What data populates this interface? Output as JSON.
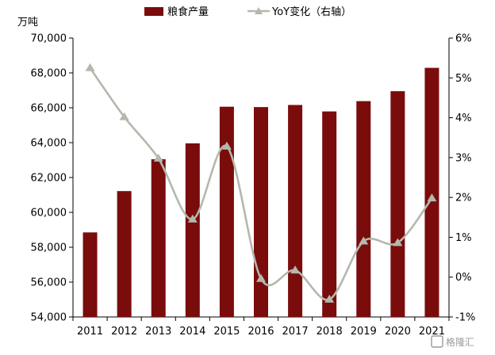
{
  "chart_data": {
    "type": "bar",
    "categories": [
      "2011",
      "2012",
      "2013",
      "2014",
      "2015",
      "2016",
      "2017",
      "2018",
      "2019",
      "2020",
      "2021"
    ],
    "series": [
      {
        "name": "粮食产量",
        "type": "bar",
        "axis": "left",
        "color": "#7a0c0c",
        "values": [
          58850,
          61220,
          63050,
          63960,
          66060,
          66040,
          66160,
          65790,
          66380,
          66950,
          68290
        ]
      },
      {
        "name": "YoY变化（右轴）",
        "type": "line",
        "axis": "right",
        "color": "#b4b8ad",
        "marker": "triangle",
        "values": [
          5.25,
          4.02,
          2.98,
          1.45,
          3.28,
          -0.04,
          0.17,
          -0.56,
          0.9,
          0.86,
          1.98
        ]
      }
    ],
    "ylabel": "万吨",
    "ylim": [
      54000,
      70000
    ],
    "yticks": [
      "54,000",
      "56,000",
      "58,000",
      "60,000",
      "62,000",
      "64,000",
      "66,000",
      "68,000",
      "70,000"
    ],
    "y2lim": [
      -1,
      6
    ],
    "y2ticks": [
      "-1%",
      "0%",
      "1%",
      "2%",
      "3%",
      "4%",
      "5%",
      "6%"
    ],
    "legend_position": "top",
    "grid": false
  },
  "watermark": {
    "text": "格隆汇",
    "icon": "gelonghui-logo-icon"
  }
}
